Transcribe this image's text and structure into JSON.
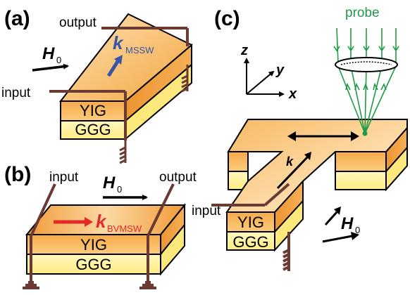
{
  "panels": {
    "a": {
      "label": "(a)",
      "output": "output",
      "input": "input",
      "field": "H",
      "field_sub": "0",
      "wave": "k",
      "wave_sub": "MSSW",
      "layer_top": "YIG",
      "layer_bottom": "GGG"
    },
    "b": {
      "label": "(b)",
      "input": "input",
      "output": "output",
      "field": "H",
      "field_sub": "0",
      "wave": "k",
      "wave_sub": "BVMSW",
      "layer_top": "YIG",
      "layer_bottom": "GGG"
    },
    "c": {
      "label": "(c)",
      "probe": "probe",
      "axis_x": "x",
      "axis_y": "y",
      "axis_z": "z",
      "wave": "k",
      "input": "input",
      "field": "H",
      "field_sub": "0",
      "layer_top": "YIG",
      "layer_bottom": "GGG"
    }
  },
  "colors": {
    "yig_top": "#f6b45e",
    "yig_side": "#f9c46e",
    "ggg": "#fff3a0",
    "antenna": "#6b3a33",
    "k_mssw": "#3a55a5",
    "k_bvmsw": "#e22a2a",
    "probe": "#1f9a48"
  }
}
